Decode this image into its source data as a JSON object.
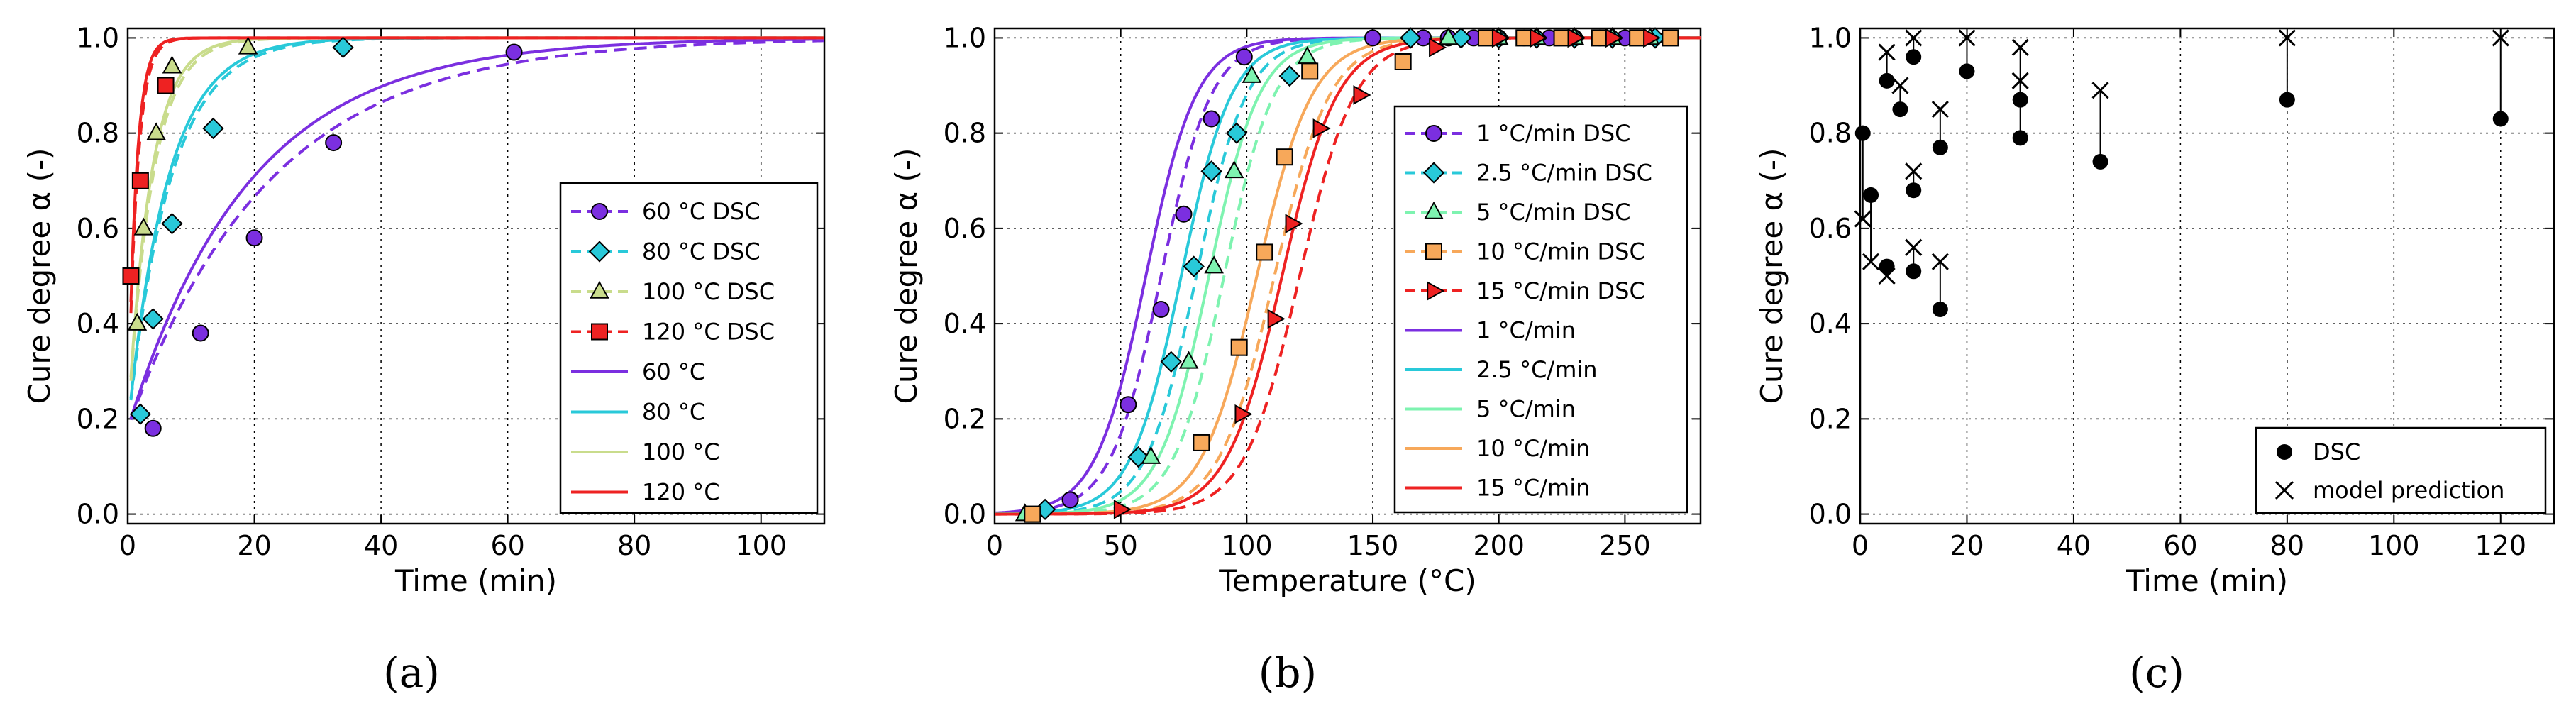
{
  "chart_data": [
    {
      "type": "line",
      "panel": "(a)",
      "xlabel": "Time (min)",
      "ylabel": "Cure degree α (-)",
      "xlim": [
        0,
        110
      ],
      "ylim": [
        -0.02,
        1.02
      ],
      "xticks": [
        "0",
        "20",
        "40",
        "60",
        "80",
        "100"
      ],
      "yticks": [
        "0.0",
        "0.2",
        "0.4",
        "0.6",
        "0.8",
        "1.0"
      ],
      "grid": true,
      "legend_position": "center-right",
      "series": [
        {
          "name": "60 °C DSC",
          "kind": "dsc",
          "marker": "circle",
          "color": "#7b2fe0",
          "x": [
            4,
            11.5,
            20,
            32.5,
            61
          ],
          "y": [
            0.18,
            0.38,
            0.58,
            0.78,
            0.97
          ]
        },
        {
          "name": "80 °C DSC",
          "kind": "dsc",
          "marker": "diamond",
          "color": "#29c9d9",
          "x": [
            2,
            4,
            7,
            13.5,
            34
          ],
          "y": [
            0.21,
            0.41,
            0.61,
            0.81,
            0.98
          ]
        },
        {
          "name": "100 °C DSC",
          "kind": "dsc",
          "marker": "triangle",
          "color": "#c9dc8c",
          "x": [
            1.5,
            2.5,
            4.5,
            7,
            19
          ],
          "y": [
            0.4,
            0.6,
            0.8,
            0.94,
            0.98
          ]
        },
        {
          "name": "120 °C DSC",
          "kind": "dsc",
          "marker": "square",
          "color": "#ee2222",
          "x": [
            0.5,
            2,
            6
          ],
          "y": [
            0.5,
            0.7,
            0.9
          ]
        },
        {
          "name": "60 °C",
          "kind": "model",
          "color": "#7b2fe0"
        },
        {
          "name": "80 °C",
          "kind": "model",
          "color": "#29c9d9"
        },
        {
          "name": "100 °C",
          "kind": "model",
          "color": "#c9dc8c"
        },
        {
          "name": "120 °C",
          "kind": "model",
          "color": "#ee2222"
        }
      ]
    },
    {
      "type": "line",
      "panel": "(b)",
      "xlabel": "Temperature (°C)",
      "ylabel": "Cure degree α (-)",
      "xlim": [
        0,
        280
      ],
      "ylim": [
        -0.02,
        1.02
      ],
      "xticks": [
        "0",
        "50",
        "100",
        "150",
        "200",
        "250"
      ],
      "yticks": [
        "0.0",
        "0.2",
        "0.4",
        "0.6",
        "0.8",
        "1.0"
      ],
      "grid": true,
      "legend_position": "right",
      "series": [
        {
          "name": "1 °C/min DSC",
          "kind": "dsc",
          "marker": "circle",
          "color": "#7b2fe0",
          "x": [
            30,
            53,
            66,
            75,
            86,
            99,
            150,
            170,
            180,
            190,
            200,
            210,
            220,
            230,
            240,
            250
          ],
          "y": [
            0.03,
            0.23,
            0.43,
            0.63,
            0.83,
            0.96,
            1.0,
            1.0,
            1.0,
            1.0,
            1.0,
            1.0,
            1.0,
            1.0,
            1.0,
            1.0
          ]
        },
        {
          "name": "2.5 °C/min DSC",
          "kind": "dsc",
          "marker": "diamond",
          "color": "#29c9d9",
          "x": [
            20,
            57,
            70,
            79,
            86,
            96,
            117,
            165,
            185,
            200,
            215,
            230,
            245,
            262
          ],
          "y": [
            0.01,
            0.12,
            0.32,
            0.52,
            0.72,
            0.8,
            0.92,
            1.0,
            1.0,
            1.0,
            1.0,
            1.0,
            1.0,
            1.0
          ]
        },
        {
          "name": "5 °C/min DSC",
          "kind": "dsc",
          "marker": "triangle",
          "color": "#7ef3b0",
          "x": [
            12,
            62,
            77,
            87,
            95,
            102,
            124,
            180,
            200,
            215,
            230,
            245,
            260
          ],
          "y": [
            0.0,
            0.12,
            0.32,
            0.52,
            0.72,
            0.92,
            0.96,
            1.0,
            1.0,
            1.0,
            1.0,
            1.0,
            1.0
          ]
        },
        {
          "name": "10 °C/min DSC",
          "kind": "dsc",
          "marker": "square",
          "color": "#f7a85a",
          "x": [
            15,
            82,
            97,
            107,
            115,
            125,
            162,
            195,
            210,
            225,
            240,
            255,
            268
          ],
          "y": [
            0.0,
            0.15,
            0.35,
            0.55,
            0.75,
            0.93,
            0.95,
            1.0,
            1.0,
            1.0,
            1.0,
            1.0,
            1.0
          ]
        },
        {
          "name": "15 °C/min DSC",
          "kind": "dsc",
          "marker": "tri-right",
          "color": "#ee2222",
          "x": [
            50,
            98,
            111,
            118,
            129,
            145,
            175,
            200,
            215,
            230,
            245,
            260
          ],
          "y": [
            0.01,
            0.21,
            0.41,
            0.61,
            0.81,
            0.88,
            0.98,
            1.0,
            1.0,
            1.0,
            1.0,
            1.0
          ]
        },
        {
          "name": "1 °C/min",
          "kind": "model",
          "color": "#7b2fe0"
        },
        {
          "name": "2.5 °C/min",
          "kind": "model",
          "color": "#29c9d9"
        },
        {
          "name": "5 °C/min",
          "kind": "model",
          "color": "#7ef3b0"
        },
        {
          "name": "10 °C/min",
          "kind": "model",
          "color": "#f7a85a"
        },
        {
          "name": "15 °C/min",
          "kind": "model",
          "color": "#ee2222"
        }
      ]
    },
    {
      "type": "scatter",
      "panel": "(c)",
      "xlabel": "Time (min)",
      "ylabel": "Cure degree α (-)",
      "xlim": [
        0,
        130
      ],
      "ylim": [
        -0.02,
        1.02
      ],
      "xticks": [
        "0",
        "20",
        "40",
        "60",
        "80",
        "100",
        "120"
      ],
      "yticks": [
        "0.0",
        "0.2",
        "0.4",
        "0.6",
        "0.8",
        "1.0"
      ],
      "grid": true,
      "legend_position": "lower-right",
      "series": [
        {
          "name": "DSC",
          "marker": "filled-circle",
          "color": "#000000",
          "x": [
            0.5,
            2,
            5,
            5,
            7.5,
            10,
            10,
            10,
            15,
            15,
            20,
            30,
            30,
            45,
            80,
            120
          ],
          "y": [
            0.8,
            0.67,
            0.52,
            0.91,
            0.85,
            0.96,
            0.68,
            0.51,
            0.77,
            0.43,
            0.93,
            0.87,
            0.79,
            0.74,
            0.87,
            0.83
          ]
        },
        {
          "name": "model prediction",
          "marker": "x",
          "color": "#000000",
          "x": [
            0.5,
            2,
            5,
            5,
            7.5,
            10,
            10,
            10,
            15,
            15,
            20,
            30,
            30,
            45,
            80,
            120
          ],
          "y": [
            0.62,
            0.53,
            0.5,
            0.97,
            0.9,
            1.0,
            0.72,
            0.56,
            0.85,
            0.53,
            1.0,
            0.98,
            0.91,
            0.89,
            1.0,
            1.0
          ]
        }
      ]
    }
  ]
}
